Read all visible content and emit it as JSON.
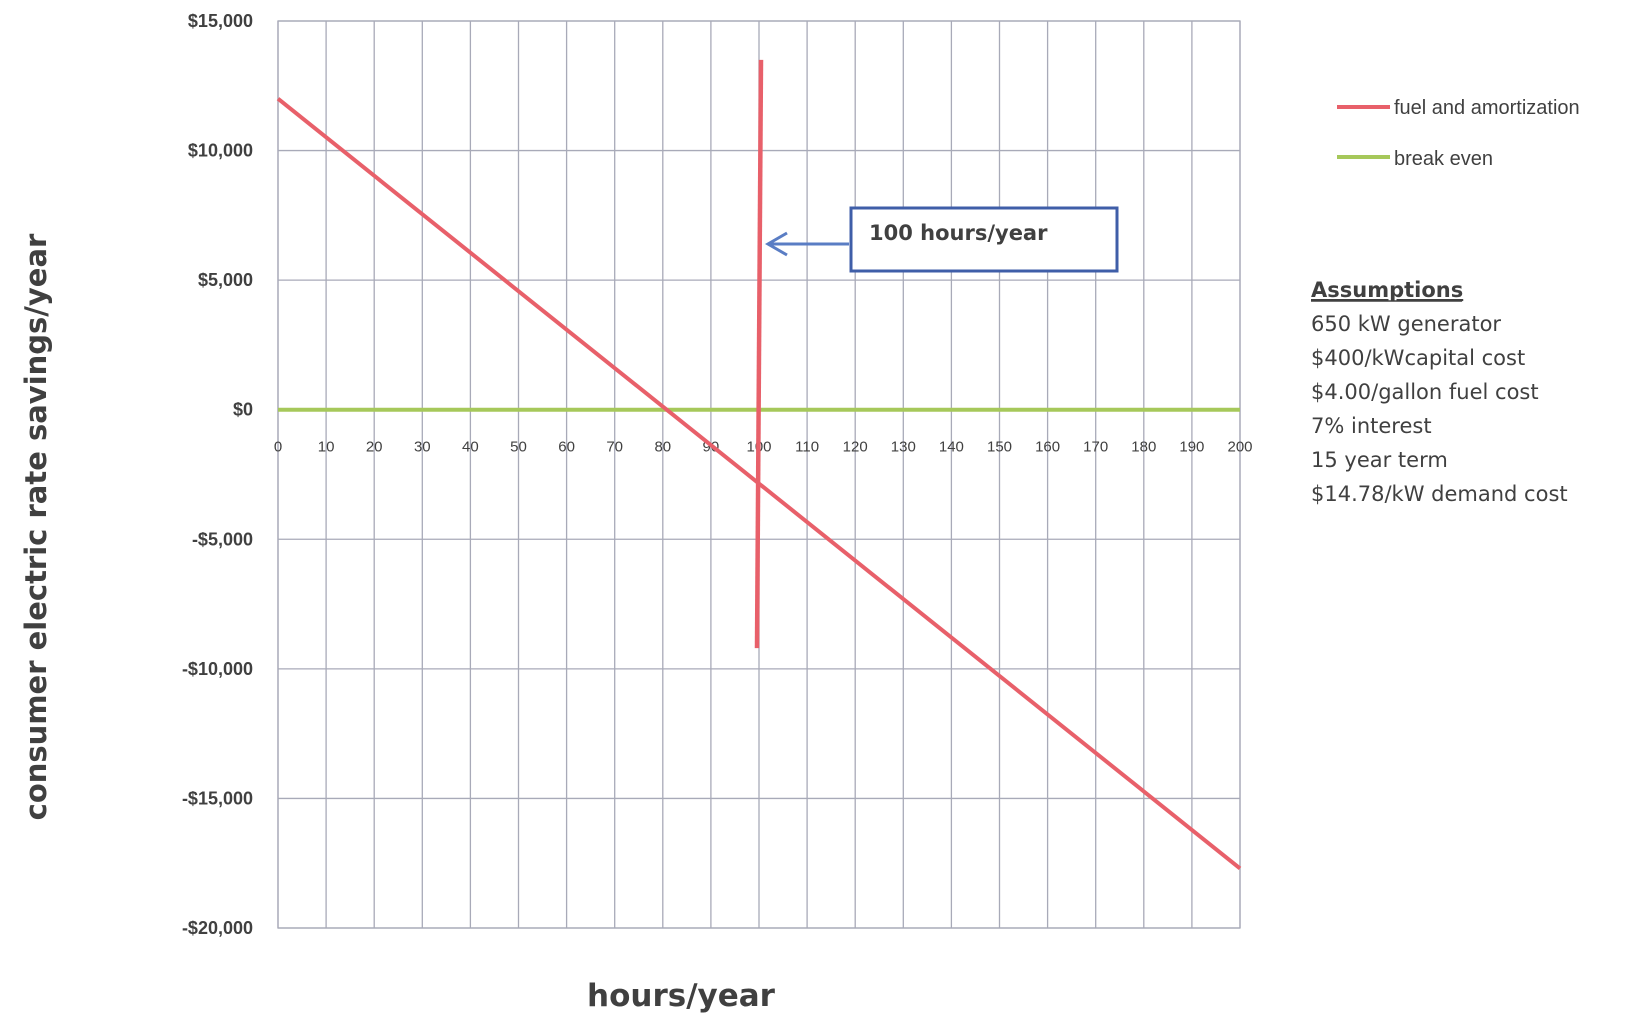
{
  "chart_data": {
    "type": "line",
    "xlabel": "hours/year",
    "ylabel": "consumer electric rate savings/year",
    "xlim": [
      0,
      200
    ],
    "ylim": [
      -20000,
      15000
    ],
    "x_ticks": [
      0,
      10,
      20,
      30,
      40,
      50,
      60,
      70,
      80,
      90,
      100,
      110,
      120,
      130,
      140,
      150,
      160,
      170,
      180,
      190,
      200
    ],
    "y_ticks": [
      15000,
      10000,
      5000,
      0,
      -5000,
      -10000,
      -15000,
      -20000
    ],
    "y_tick_labels": [
      "$15,000",
      "$10,000",
      "$5,000",
      "$0",
      "-$5,000",
      "-$10,000",
      "-$15,000",
      "-$20,000"
    ],
    "grid": true,
    "legend_position": "right",
    "series": [
      {
        "name": "fuel and amortization",
        "color": "#e8606a",
        "x": [
          0,
          200
        ],
        "y": [
          12000,
          -17700
        ]
      },
      {
        "name": "break even",
        "color": "#a6c85a",
        "x": [
          0,
          200
        ],
        "y": [
          0,
          0
        ]
      }
    ],
    "marker_line": {
      "x": 100,
      "y_top": 13500,
      "y_bottom": -9200,
      "color": "#e8606a"
    },
    "annotation": {
      "text": "100 hours/year",
      "border_color": "#3f5ea8",
      "arrow_color": "#5a7dc4"
    },
    "assumptions": {
      "title": "Assumptions",
      "items": [
        "650 kW generator",
        "$400/kWcapital cost",
        "$4.00/gallon fuel cost",
        "7% interest",
        "15 year term",
        "$14.78/kW demand cost"
      ]
    }
  }
}
